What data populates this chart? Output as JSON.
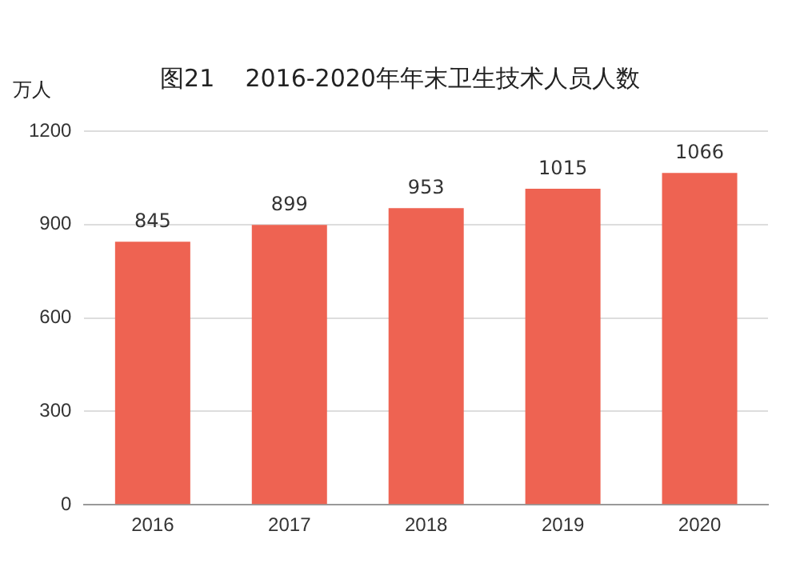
{
  "chart_data": {
    "type": "bar",
    "title": "图21    2016-2020年年末卫生技术人员人数",
    "ylabel": "万人",
    "categories": [
      "2016",
      "2017",
      "2018",
      "2019",
      "2020"
    ],
    "values": [
      845,
      899,
      953,
      1015,
      1066
    ],
    "color": "#ee6352",
    "ylim": [
      0,
      1200
    ],
    "yticks": [
      0,
      300,
      600,
      900,
      1200
    ],
    "grid": "y",
    "data_labels": true
  }
}
